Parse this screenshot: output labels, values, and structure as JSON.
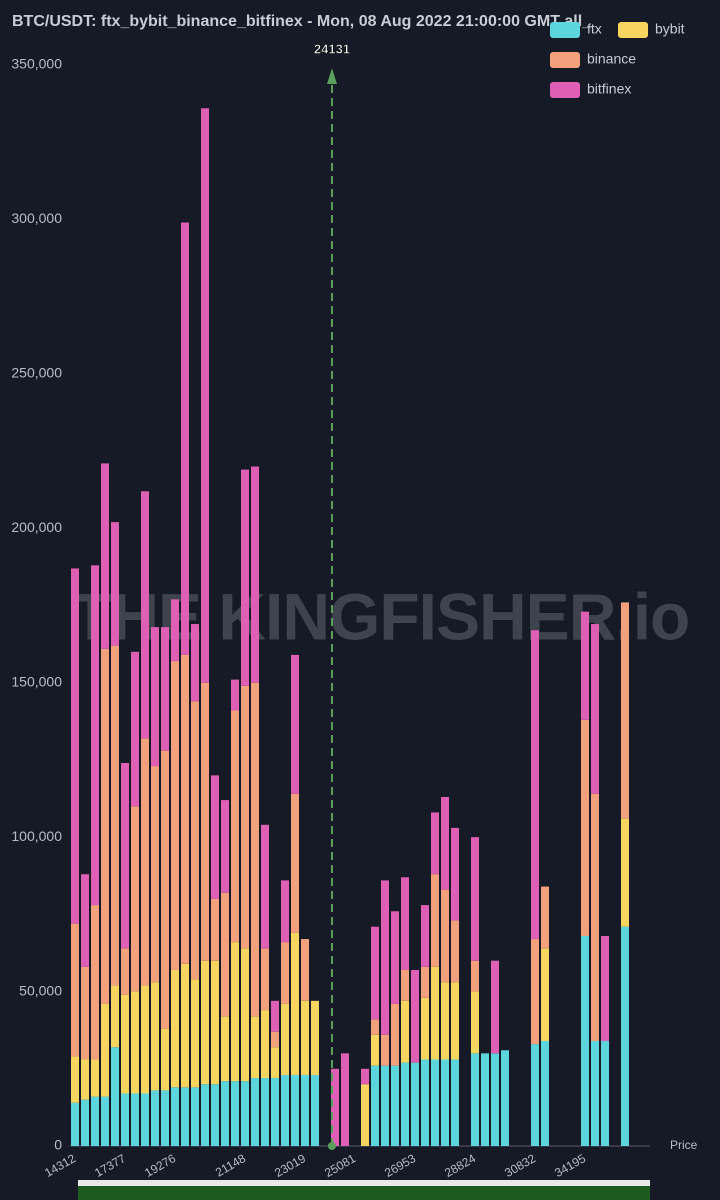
{
  "chart_data": {
    "type": "stacked-bar",
    "title": "BTC/USDT: ftx_bybit_binance_bitfinex - Mon, 08 Aug 2022 21:00:00 GMT all_",
    "x_label": "Price",
    "watermark": "THE KINGFISHER.io",
    "annotation": 24131,
    "categories": [
      "14312",
      null,
      null,
      null,
      null,
      "17377",
      null,
      null,
      null,
      null,
      "19276",
      null,
      null,
      null,
      null,
      null,
      null,
      "21148",
      null,
      null,
      null,
      null,
      null,
      "23019",
      null,
      null,
      null,
      null,
      "25081",
      null,
      null,
      null,
      null,
      null,
      "26953",
      null,
      null,
      null,
      null,
      null,
      "28824",
      null,
      null,
      null,
      null,
      null,
      "30832",
      null,
      null,
      null,
      null,
      "34195",
      null,
      null,
      null,
      null
    ],
    "series": [
      {
        "name": "ftx",
        "color": "#5cd5dc",
        "values": [
          14000,
          15000,
          16000,
          16000,
          32000,
          17000,
          17000,
          17000,
          18000,
          18000,
          19000,
          19000,
          19000,
          20000,
          20000,
          21000,
          21000,
          21000,
          22000,
          22000,
          22000,
          23000,
          23000,
          23000,
          23000,
          0,
          0,
          0,
          0,
          0,
          26000,
          26000,
          26000,
          27000,
          27000,
          28000,
          28000,
          28000,
          28000,
          0,
          30000,
          30000,
          30000,
          31000,
          0,
          0,
          33000,
          34000,
          0,
          0,
          0,
          68000,
          34000,
          34000,
          0,
          71000
        ]
      },
      {
        "name": "bybit",
        "color": "#f8d55e",
        "values": [
          15000,
          13000,
          12000,
          30000,
          20000,
          32000,
          33000,
          35000,
          35000,
          20000,
          38000,
          40000,
          35000,
          40000,
          40000,
          21000,
          45000,
          43000,
          20000,
          22000,
          10000,
          23000,
          46000,
          24000,
          24000,
          0,
          0,
          0,
          0,
          20000,
          10000,
          0,
          0,
          20000,
          0,
          20000,
          30000,
          25000,
          25000,
          0,
          20000,
          0,
          0,
          0,
          0,
          0,
          0,
          30000,
          0,
          0,
          0,
          0,
          0,
          0,
          0,
          35000
        ]
      },
      {
        "name": "binance",
        "color": "#f3a07c",
        "values": [
          43000,
          30000,
          50000,
          115000,
          110000,
          15000,
          60000,
          80000,
          70000,
          90000,
          100000,
          100000,
          90000,
          90000,
          20000,
          40000,
          75000,
          85000,
          108000,
          20000,
          5000,
          20000,
          45000,
          20000,
          0,
          0,
          0,
          0,
          0,
          0,
          5000,
          10000,
          20000,
          10000,
          0,
          10000,
          30000,
          30000,
          20000,
          0,
          10000,
          0,
          0,
          0,
          0,
          0,
          34000,
          20000,
          0,
          0,
          0,
          70000,
          80000,
          0,
          0,
          70000
        ]
      },
      {
        "name": "bitfinex",
        "color": "#df5fb4",
        "values": [
          115000,
          30000,
          110000,
          60000,
          40000,
          60000,
          50000,
          80000,
          45000,
          40000,
          20000,
          140000,
          25000,
          186000,
          40000,
          30000,
          10000,
          70000,
          70000,
          40000,
          10000,
          20000,
          45000,
          0,
          0,
          0,
          25000,
          30000,
          0,
          5000,
          30000,
          50000,
          30000,
          30000,
          30000,
          20000,
          20000,
          30000,
          30000,
          0,
          40000,
          0,
          30000,
          0,
          0,
          0,
          100000,
          0,
          0,
          0,
          0,
          35000,
          55000,
          34000,
          0,
          0
        ]
      }
    ],
    "ylim": [
      0,
      350000
    ],
    "yticks": [
      0,
      {
        "value": 50000,
        "label": "50,000"
      },
      {
        "value": 100000,
        "label": "100,000"
      },
      {
        "value": 150000,
        "label": "150,000"
      },
      {
        "value": 200000,
        "label": "200,000"
      },
      {
        "value": 250000,
        "label": "250,000"
      },
      {
        "value": 300000,
        "label": "300,000"
      },
      {
        "value": 350000,
        "label": "350,000"
      }
    ],
    "legend": "top-right"
  }
}
